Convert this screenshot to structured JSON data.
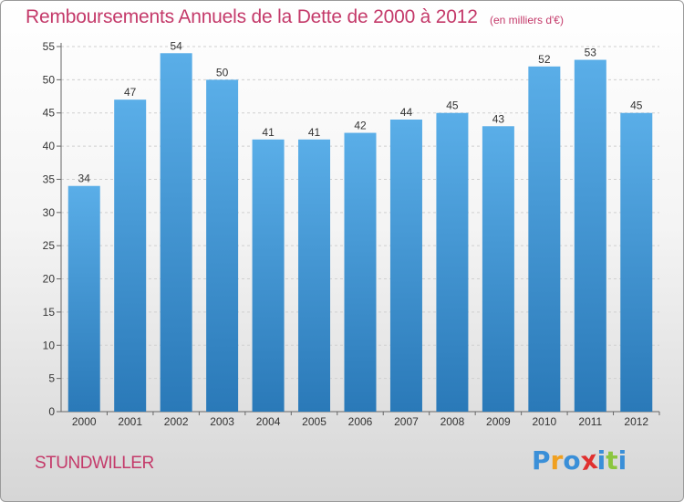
{
  "title": "Remboursements Annuels de la Dette de 2000 à 2012",
  "subtitle": "(en milliers d'€)",
  "commune": "STUNDWILLER",
  "logo": {
    "letters": [
      "P",
      "r",
      "o",
      "x",
      "i",
      "t",
      "i"
    ],
    "colors": [
      "#3a8fd8",
      "#f0a020",
      "#3a8fd8",
      "#e0302f",
      "#3a8fd8",
      "#8cc63f",
      "#3a8fd8"
    ]
  },
  "chart_data": {
    "type": "bar",
    "categories": [
      "2000",
      "2001",
      "2002",
      "2003",
      "2004",
      "2005",
      "2006",
      "2007",
      "2008",
      "2009",
      "2010",
      "2011",
      "2012"
    ],
    "values": [
      34,
      47,
      54,
      50,
      41,
      41,
      42,
      44,
      45,
      43,
      52,
      53,
      45
    ],
    "ylim": [
      0,
      55
    ],
    "yticks": [
      0,
      5,
      10,
      15,
      20,
      25,
      30,
      35,
      40,
      45,
      50,
      55
    ],
    "grid": true,
    "bar_color_top": "#5aaee8",
    "bar_color_bottom": "#2a79b8"
  }
}
